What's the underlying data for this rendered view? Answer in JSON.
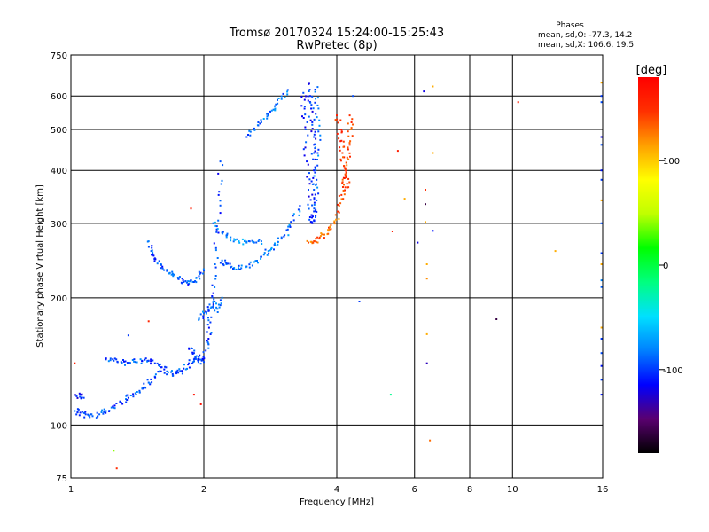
{
  "chart_data": {
    "type": "scatter",
    "title": "Tromsø 20170324 15:24:00-15:25:43",
    "subtitle": "RwPretec (8p)",
    "xlabel": "Frequency [MHz]",
    "ylabel": "Stationary phase Virtual Height [km]",
    "x_scale": "log",
    "y_scale": "log",
    "xlim": [
      1,
      16
    ],
    "ylim": [
      75,
      750
    ],
    "x_ticks": [
      1,
      2,
      4,
      6,
      8,
      10,
      16
    ],
    "y_ticks": [
      75,
      100,
      200,
      300,
      400,
      500,
      600,
      750
    ],
    "grid": true,
    "stats": {
      "heading": "Phases",
      "o_line": "mean, sd,O: -77.3, 14.2",
      "x_line": "mean, sd,X: 106.6, 19.5"
    },
    "colorbar": {
      "label": "[deg]",
      "range": [
        -180,
        180
      ],
      "ticks": [
        100,
        0,
        -100
      ],
      "colors": [
        "#000000",
        "#5a0070",
        "#0000ff",
        "#0080ff",
        "#00e0ff",
        "#00ff80",
        "#00ff00",
        "#c0ff00",
        "#ffff00",
        "#ffa000",
        "#ff3000",
        "#ff0000"
      ]
    },
    "traces": [
      {
        "name": "",
        "phase": -95,
        "points": [
          [
            1.02,
            108
          ],
          [
            1.05,
            107
          ],
          [
            1.08,
            106
          ],
          [
            1.12,
            105
          ],
          [
            1.16,
            106
          ],
          [
            1.2,
            108
          ],
          [
            1.25,
            110
          ],
          [
            1.3,
            113
          ],
          [
            1.35,
            116
          ],
          [
            1.4,
            119
          ],
          [
            1.45,
            122
          ],
          [
            1.5,
            126
          ],
          [
            1.55,
            130
          ],
          [
            1.6,
            134
          ]
        ]
      },
      {
        "name": "",
        "phase": -110,
        "points": [
          [
            1.03,
            117
          ],
          [
            1.05,
            118
          ],
          [
            1.07,
            116
          ]
        ]
      },
      {
        "name": "",
        "phase": -95,
        "points": [
          [
            1.2,
            143
          ],
          [
            1.25,
            142
          ],
          [
            1.3,
            141
          ],
          [
            1.35,
            140
          ],
          [
            1.4,
            141
          ],
          [
            1.45,
            142
          ],
          [
            1.5,
            142
          ],
          [
            1.55,
            140
          ],
          [
            1.6,
            137
          ],
          [
            1.65,
            134
          ],
          [
            1.7,
            132
          ],
          [
            1.75,
            133
          ],
          [
            1.8,
            136
          ],
          [
            1.85,
            140
          ],
          [
            1.9,
            143
          ],
          [
            1.95,
            145
          ]
        ]
      },
      {
        "name": "",
        "phase": -95,
        "points": [
          [
            1.5,
            272
          ],
          [
            1.52,
            258
          ],
          [
            1.55,
            248
          ],
          [
            1.6,
            240
          ],
          [
            1.65,
            233
          ],
          [
            1.7,
            228
          ],
          [
            1.75,
            222
          ],
          [
            1.8,
            218
          ],
          [
            1.85,
            216
          ],
          [
            1.9,
            218
          ],
          [
            1.95,
            225
          ],
          [
            2.0,
            232
          ]
        ]
      },
      {
        "name": "",
        "phase": -100,
        "points": [
          [
            1.85,
            152
          ],
          [
            1.9,
            148
          ],
          [
            1.95,
            143
          ],
          [
            2.0,
            141
          ],
          [
            2.02,
            150
          ],
          [
            2.05,
            160
          ],
          [
            2.07,
            175
          ],
          [
            2.08,
            190
          ],
          [
            2.1,
            205
          ],
          [
            2.12,
            240
          ],
          [
            2.14,
            290
          ],
          [
            2.16,
            350
          ],
          [
            2.18,
            420
          ]
        ]
      },
      {
        "name": "",
        "phase": -90,
        "points": [
          [
            1.95,
            178
          ],
          [
            2.0,
            184
          ],
          [
            2.05,
            186
          ],
          [
            2.1,
            195
          ],
          [
            2.15,
            185
          ],
          [
            2.2,
            200
          ]
        ]
      },
      {
        "name": "",
        "phase": -85,
        "points": [
          [
            2.2,
            245
          ],
          [
            2.25,
            240
          ],
          [
            2.3,
            236
          ],
          [
            2.4,
            234
          ],
          [
            2.5,
            237
          ],
          [
            2.6,
            243
          ],
          [
            2.7,
            250
          ],
          [
            2.8,
            258
          ],
          [
            2.9,
            266
          ],
          [
            3.0,
            276
          ],
          [
            3.1,
            290
          ],
          [
            3.2,
            305
          ],
          [
            3.3,
            330
          ]
        ]
      },
      {
        "name": "",
        "phase": -80,
        "points": [
          [
            2.1,
            300
          ],
          [
            2.2,
            285
          ],
          [
            2.3,
            278
          ],
          [
            2.4,
            272
          ],
          [
            2.5,
            270
          ],
          [
            2.6,
            270
          ],
          [
            2.7,
            272
          ]
        ]
      },
      {
        "name": "",
        "phase": -85,
        "points": [
          [
            2.5,
            480
          ],
          [
            2.6,
            500
          ],
          [
            2.7,
            520
          ],
          [
            2.8,
            540
          ],
          [
            2.9,
            560
          ],
          [
            3.0,
            590
          ],
          [
            3.1,
            620
          ]
        ]
      },
      {
        "name": "",
        "phase": -105,
        "points": [
          [
            3.45,
            640
          ],
          [
            3.48,
            600
          ],
          [
            3.5,
            560
          ],
          [
            3.52,
            520
          ],
          [
            3.55,
            480
          ],
          [
            3.55,
            440
          ],
          [
            3.55,
            400
          ],
          [
            3.55,
            360
          ],
          [
            3.55,
            320
          ],
          [
            3.52,
            300
          ],
          [
            3.48,
            310
          ],
          [
            3.45,
            360
          ],
          [
            3.42,
            420
          ],
          [
            3.4,
            500
          ],
          [
            3.38,
            560
          ],
          [
            3.36,
            610
          ]
        ]
      },
      {
        "name": "",
        "phase": -90,
        "points": [
          [
            3.62,
            630
          ],
          [
            3.62,
            570
          ],
          [
            3.62,
            500
          ],
          [
            3.62,
            440
          ],
          [
            3.6,
            380
          ],
          [
            3.6,
            340
          ],
          [
            3.58,
            310
          ]
        ]
      },
      {
        "name": "",
        "phase": 130,
        "points": [
          [
            3.45,
            270
          ],
          [
            3.55,
            272
          ],
          [
            3.65,
            276
          ],
          [
            3.75,
            282
          ],
          [
            3.85,
            290
          ],
          [
            3.95,
            302
          ],
          [
            4.05,
            318
          ]
        ]
      },
      {
        "name": "",
        "phase": 140,
        "points": [
          [
            4.05,
            330
          ],
          [
            4.1,
            350
          ],
          [
            4.15,
            370
          ],
          [
            4.2,
            395
          ],
          [
            4.25,
            425
          ],
          [
            4.28,
            460
          ],
          [
            4.3,
            500
          ],
          [
            4.28,
            540
          ]
        ]
      },
      {
        "name": "",
        "phase": 150,
        "points": [
          [
            4.0,
            540
          ],
          [
            4.05,
            500
          ],
          [
            4.1,
            470
          ],
          [
            4.12,
            440
          ],
          [
            4.15,
            410
          ],
          [
            4.2,
            385
          ],
          [
            4.25,
            365
          ]
        ]
      }
    ],
    "scattered_points": [
      {
        "x": 1.02,
        "y": 140,
        "phase": 160
      },
      {
        "x": 1.25,
        "y": 87,
        "phase": 40
      },
      {
        "x": 1.27,
        "y": 79,
        "phase": 150
      },
      {
        "x": 1.5,
        "y": 176,
        "phase": 155
      },
      {
        "x": 1.35,
        "y": 163,
        "phase": -100
      },
      {
        "x": 1.87,
        "y": 325,
        "phase": 160
      },
      {
        "x": 1.9,
        "y": 118,
        "phase": 170
      },
      {
        "x": 1.97,
        "y": 112,
        "phase": 170
      },
      {
        "x": 2.1,
        "y": 300,
        "phase": -90
      },
      {
        "x": 4.35,
        "y": 600,
        "phase": -95
      },
      {
        "x": 4.5,
        "y": 196,
        "phase": -100
      },
      {
        "x": 5.3,
        "y": 118,
        "phase": -20
      },
      {
        "x": 5.35,
        "y": 287,
        "phase": 160
      },
      {
        "x": 5.5,
        "y": 445,
        "phase": 160
      },
      {
        "x": 5.7,
        "y": 343,
        "phase": 110
      },
      {
        "x": 6.1,
        "y": 270,
        "phase": -120
      },
      {
        "x": 6.3,
        "y": 615,
        "phase": -120
      },
      {
        "x": 6.35,
        "y": 360,
        "phase": 150
      },
      {
        "x": 6.35,
        "y": 333,
        "phase": -160
      },
      {
        "x": 6.35,
        "y": 302,
        "phase": 110
      },
      {
        "x": 6.4,
        "y": 240,
        "phase": 110
      },
      {
        "x": 6.4,
        "y": 222,
        "phase": 120
      },
      {
        "x": 6.4,
        "y": 164,
        "phase": 110
      },
      {
        "x": 6.4,
        "y": 140,
        "phase": -130
      },
      {
        "x": 6.5,
        "y": 92,
        "phase": 130
      },
      {
        "x": 6.6,
        "y": 632,
        "phase": 110
      },
      {
        "x": 6.6,
        "y": 440,
        "phase": 110
      },
      {
        "x": 6.6,
        "y": 288,
        "phase": -110
      },
      {
        "x": 9.2,
        "y": 178,
        "phase": -160
      },
      {
        "x": 10.3,
        "y": 580,
        "phase": 160
      },
      {
        "x": 12.5,
        "y": 258,
        "phase": 110
      },
      {
        "x": 15.9,
        "y": 645,
        "phase": 110
      },
      {
        "x": 15.9,
        "y": 600,
        "phase": -100
      },
      {
        "x": 15.9,
        "y": 580,
        "phase": -95
      },
      {
        "x": 15.9,
        "y": 480,
        "phase": -120
      },
      {
        "x": 15.9,
        "y": 460,
        "phase": -95
      },
      {
        "x": 15.9,
        "y": 400,
        "phase": -110
      },
      {
        "x": 15.9,
        "y": 380,
        "phase": -100
      },
      {
        "x": 15.9,
        "y": 340,
        "phase": 110
      },
      {
        "x": 15.9,
        "y": 300,
        "phase": -95
      },
      {
        "x": 15.9,
        "y": 255,
        "phase": -100
      },
      {
        "x": 15.9,
        "y": 240,
        "phase": 110
      },
      {
        "x": 15.9,
        "y": 220,
        "phase": -80
      },
      {
        "x": 15.9,
        "y": 212,
        "phase": -90
      },
      {
        "x": 15.9,
        "y": 170,
        "phase": 110
      },
      {
        "x": 15.9,
        "y": 160,
        "phase": -100
      },
      {
        "x": 15.9,
        "y": 148,
        "phase": -95
      },
      {
        "x": 15.9,
        "y": 138,
        "phase": -110
      },
      {
        "x": 15.9,
        "y": 128,
        "phase": -100
      },
      {
        "x": 15.9,
        "y": 118,
        "phase": -110
      }
    ]
  }
}
